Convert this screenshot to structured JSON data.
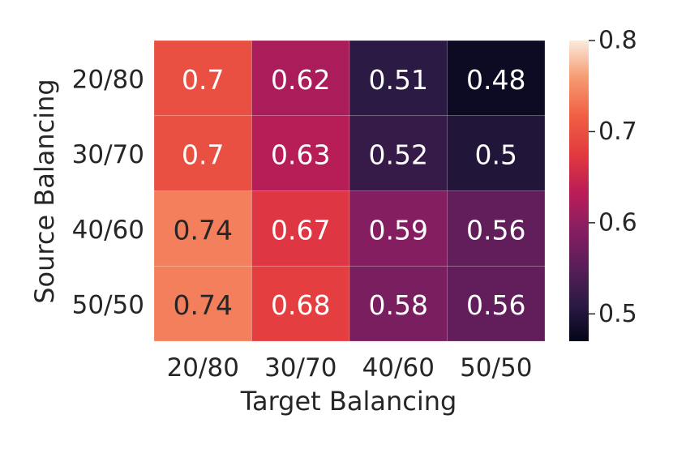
{
  "chart_data": {
    "type": "heatmap",
    "x_categories": [
      "20/80",
      "30/70",
      "40/60",
      "50/50"
    ],
    "y_categories": [
      "20/80",
      "30/70",
      "40/60",
      "50/50"
    ],
    "values": [
      [
        0.7,
        0.62,
        0.51,
        0.48
      ],
      [
        0.7,
        0.63,
        0.52,
        0.5
      ],
      [
        0.74,
        0.67,
        0.59,
        0.56
      ],
      [
        0.74,
        0.68,
        0.58,
        0.56
      ]
    ],
    "annotations": [
      [
        "0.7",
        "0.62",
        "0.51",
        "0.48"
      ],
      [
        "0.7",
        "0.63",
        "0.52",
        "0.5"
      ],
      [
        "0.74",
        "0.67",
        "0.59",
        "0.56"
      ],
      [
        "0.74",
        "0.68",
        "0.58",
        "0.56"
      ]
    ],
    "xlabel": "Target Balancing",
    "ylabel": "Source Balancing",
    "colorbar": {
      "range": [
        0.47,
        0.8
      ],
      "ticks": [
        0.5,
        0.6,
        0.7,
        0.8
      ],
      "tick_labels": [
        "0.5",
        "0.6",
        "0.7",
        "0.8"
      ],
      "colormap": "rocket"
    }
  }
}
